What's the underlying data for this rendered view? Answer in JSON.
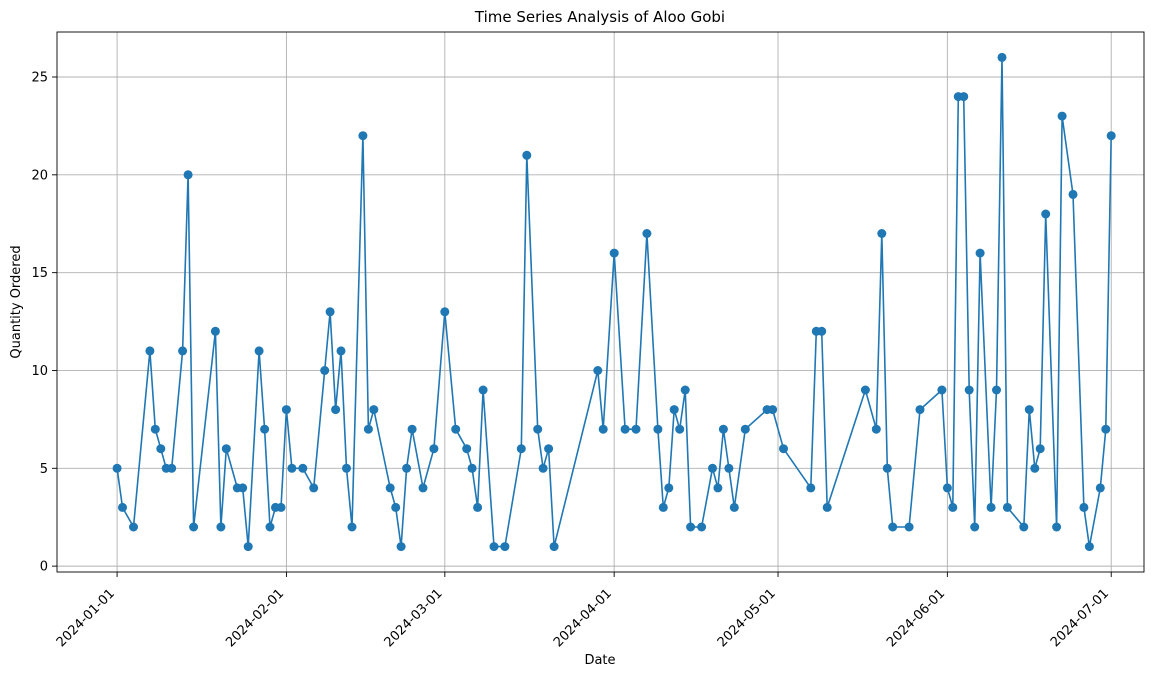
{
  "chart_data": {
    "type": "line",
    "title": "Time Series Analysis of Aloo Gobi",
    "xlabel": "Date",
    "ylabel": "Quantity Ordered",
    "xlim": [
      "2023-12-21",
      "2024-07-07"
    ],
    "ylim": [
      -0.3,
      27.3
    ],
    "grid": true,
    "x_ticks": [
      "2024-01-01",
      "2024-02-01",
      "2024-03-01",
      "2024-04-01",
      "2024-05-01",
      "2024-06-01",
      "2024-07-01"
    ],
    "y_ticks": [
      0,
      5,
      10,
      15,
      20,
      25
    ],
    "color": "#1f77b4",
    "series": [
      {
        "points": [
          [
            "2024-01-01",
            5
          ],
          [
            "2024-01-02",
            3
          ],
          [
            "2024-01-04",
            2
          ],
          [
            "2024-01-07",
            11
          ],
          [
            "2024-01-08",
            7
          ],
          [
            "2024-01-09",
            6
          ],
          [
            "2024-01-10",
            5
          ],
          [
            "2024-01-11",
            5
          ],
          [
            "2024-01-13",
            11
          ],
          [
            "2024-01-14",
            20
          ],
          [
            "2024-01-15",
            2
          ],
          [
            "2024-01-19",
            12
          ],
          [
            "2024-01-20",
            2
          ],
          [
            "2024-01-21",
            6
          ],
          [
            "2024-01-23",
            4
          ],
          [
            "2024-01-24",
            4
          ],
          [
            "2024-01-25",
            1
          ],
          [
            "2024-01-27",
            11
          ],
          [
            "2024-01-28",
            7
          ],
          [
            "2024-01-29",
            2
          ],
          [
            "2024-01-30",
            3
          ],
          [
            "2024-01-31",
            3
          ],
          [
            "2024-02-01",
            8
          ],
          [
            "2024-02-02",
            5
          ],
          [
            "2024-02-04",
            5
          ],
          [
            "2024-02-06",
            4
          ],
          [
            "2024-02-08",
            10
          ],
          [
            "2024-02-09",
            13
          ],
          [
            "2024-02-10",
            8
          ],
          [
            "2024-02-11",
            11
          ],
          [
            "2024-02-12",
            5
          ],
          [
            "2024-02-13",
            2
          ],
          [
            "2024-02-15",
            22
          ],
          [
            "2024-02-16",
            7
          ],
          [
            "2024-02-17",
            8
          ],
          [
            "2024-02-20",
            4
          ],
          [
            "2024-02-21",
            3
          ],
          [
            "2024-02-22",
            1
          ],
          [
            "2024-02-23",
            5
          ],
          [
            "2024-02-24",
            7
          ],
          [
            "2024-02-26",
            4
          ],
          [
            "2024-02-28",
            6
          ],
          [
            "2024-03-01",
            13
          ],
          [
            "2024-03-03",
            7
          ],
          [
            "2024-03-05",
            6
          ],
          [
            "2024-03-06",
            5
          ],
          [
            "2024-03-07",
            3
          ],
          [
            "2024-03-08",
            9
          ],
          [
            "2024-03-10",
            1
          ],
          [
            "2024-03-12",
            1
          ],
          [
            "2024-03-15",
            6
          ],
          [
            "2024-03-16",
            21
          ],
          [
            "2024-03-18",
            7
          ],
          [
            "2024-03-19",
            5
          ],
          [
            "2024-03-20",
            6
          ],
          [
            "2024-03-21",
            1
          ],
          [
            "2024-03-29",
            10
          ],
          [
            "2024-03-30",
            7
          ],
          [
            "2024-04-01",
            16
          ],
          [
            "2024-04-03",
            7
          ],
          [
            "2024-04-05",
            7
          ],
          [
            "2024-04-07",
            17
          ],
          [
            "2024-04-09",
            7
          ],
          [
            "2024-04-10",
            3
          ],
          [
            "2024-04-11",
            4
          ],
          [
            "2024-04-12",
            8
          ],
          [
            "2024-04-13",
            7
          ],
          [
            "2024-04-14",
            9
          ],
          [
            "2024-04-15",
            2
          ],
          [
            "2024-04-17",
            2
          ],
          [
            "2024-04-19",
            5
          ],
          [
            "2024-04-20",
            4
          ],
          [
            "2024-04-21",
            7
          ],
          [
            "2024-04-22",
            5
          ],
          [
            "2024-04-23",
            3
          ],
          [
            "2024-04-25",
            7
          ],
          [
            "2024-04-29",
            8
          ],
          [
            "2024-04-30",
            8
          ],
          [
            "2024-05-02",
            6
          ],
          [
            "2024-05-07",
            4
          ],
          [
            "2024-05-08",
            12
          ],
          [
            "2024-05-09",
            12
          ],
          [
            "2024-05-10",
            3
          ],
          [
            "2024-05-17",
            9
          ],
          [
            "2024-05-19",
            7
          ],
          [
            "2024-05-20",
            17
          ],
          [
            "2024-05-21",
            5
          ],
          [
            "2024-05-22",
            2
          ],
          [
            "2024-05-25",
            2
          ],
          [
            "2024-05-27",
            8
          ],
          [
            "2024-05-31",
            9
          ],
          [
            "2024-06-01",
            4
          ],
          [
            "2024-06-02",
            3
          ],
          [
            "2024-06-03",
            24
          ],
          [
            "2024-06-04",
            24
          ],
          [
            "2024-06-05",
            9
          ],
          [
            "2024-06-06",
            2
          ],
          [
            "2024-06-07",
            16
          ],
          [
            "2024-06-09",
            3
          ],
          [
            "2024-06-10",
            9
          ],
          [
            "2024-06-11",
            26
          ],
          [
            "2024-06-12",
            3
          ],
          [
            "2024-06-15",
            2
          ],
          [
            "2024-06-16",
            8
          ],
          [
            "2024-06-17",
            5
          ],
          [
            "2024-06-18",
            6
          ],
          [
            "2024-06-19",
            18
          ],
          [
            "2024-06-21",
            2
          ],
          [
            "2024-06-22",
            23
          ],
          [
            "2024-06-24",
            19
          ],
          [
            "2024-06-26",
            3
          ],
          [
            "2024-06-27",
            1
          ],
          [
            "2024-06-29",
            4
          ],
          [
            "2024-06-30",
            7
          ],
          [
            "2024-07-01",
            22
          ]
        ]
      }
    ]
  }
}
